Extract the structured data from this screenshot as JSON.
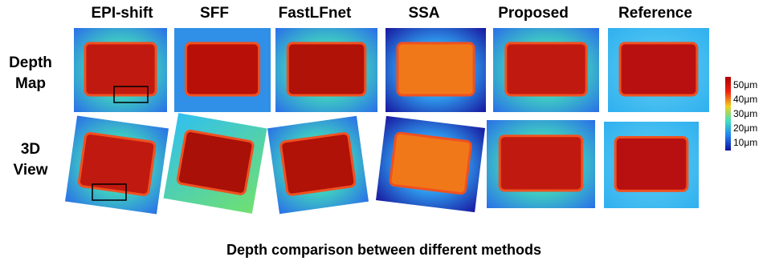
{
  "columns": [
    "EPI-shift",
    "SFF",
    "FastLFnet",
    "SSA",
    "Proposed",
    "Reference"
  ],
  "rows": [
    [
      "Depth",
      "Map"
    ],
    [
      "3D",
      "View"
    ]
  ],
  "colorbar": {
    "labels": [
      "50μm",
      "40μm",
      "30μm",
      "20μm",
      "10μm"
    ]
  },
  "caption": "Depth comparison between different methods"
}
